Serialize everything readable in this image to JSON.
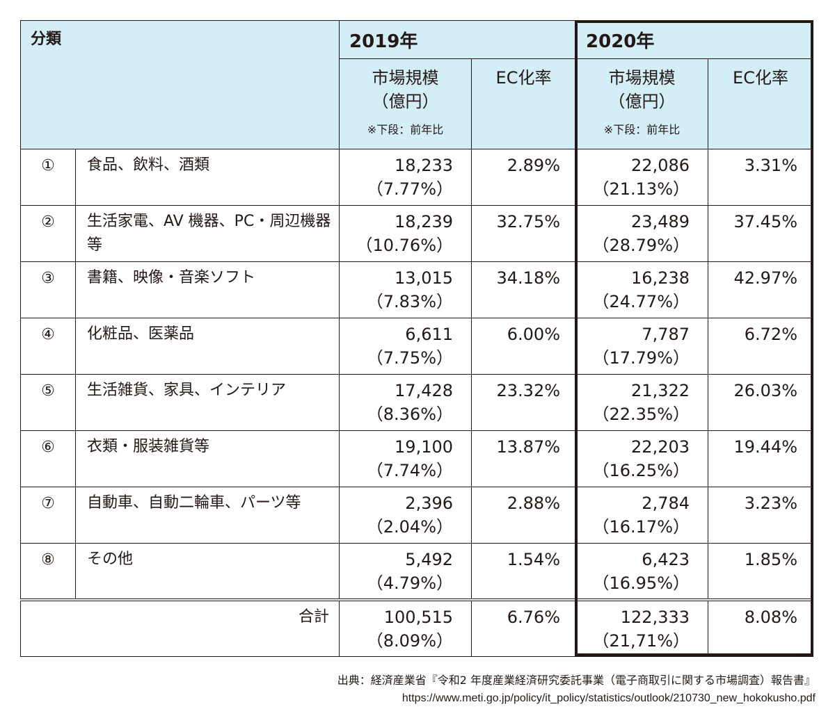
{
  "header": {
    "category_label": "分類",
    "year_2019": "2019年",
    "year_2020": "2020年",
    "market_size_line1": "市場規模",
    "market_size_line2": "（億円）",
    "market_size_note": "※下段：前年比",
    "ec_rate_label": "EC化率"
  },
  "rows": [
    {
      "num": "①",
      "category": "食品、飲料、酒類",
      "m2019": "18,233",
      "g2019": "（7.77%）",
      "ec2019": "2.89%",
      "m2020": "22,086",
      "g2020": "（21.13%）",
      "ec2020": "3.31%"
    },
    {
      "num": "②",
      "category": "生活家電、AV 機器、PC・周辺機器等",
      "m2019": "18,239",
      "g2019": "（10.76%）",
      "ec2019": "32.75%",
      "m2020": "23,489",
      "g2020": "（28.79%）",
      "ec2020": "37.45%"
    },
    {
      "num": "③",
      "category": "書籍、映像・音楽ソフト",
      "m2019": "13,015",
      "g2019": "（7.83%）",
      "ec2019": "34.18%",
      "m2020": "16,238",
      "g2020": "（24.77%）",
      "ec2020": "42.97%"
    },
    {
      "num": "④",
      "category": "化粧品、医薬品",
      "m2019": "6,611",
      "g2019": "（7.75%）",
      "ec2019": "6.00%",
      "m2020": "7,787",
      "g2020": "（17.79%）",
      "ec2020": "6.72%"
    },
    {
      "num": "⑤",
      "category": "生活雑貨、家具、インテリア",
      "m2019": "17,428",
      "g2019": "（8.36%）",
      "ec2019": "23.32%",
      "m2020": "21,322",
      "g2020": "（22.35%）",
      "ec2020": "26.03%"
    },
    {
      "num": "⑥",
      "category": "衣類・服装雑貨等",
      "m2019": "19,100",
      "g2019": "（7.74%）",
      "ec2019": "13.87%",
      "m2020": "22,203",
      "g2020": "（16.25%）",
      "ec2020": "19.44%"
    },
    {
      "num": "⑦",
      "category": "自動車、自動二輪車、パーツ等",
      "m2019": "2,396",
      "g2019": "（2.04%）",
      "ec2019": "2.88%",
      "m2020": "2,784",
      "g2020": "（16.17%）",
      "ec2020": "3.23%"
    },
    {
      "num": "⑧",
      "category": "その他",
      "m2019": "5,492",
      "g2019": "（4.79%）",
      "ec2019": "1.54%",
      "m2020": "6,423",
      "g2020": "（16.95%）",
      "ec2020": "1.85%"
    }
  ],
  "total": {
    "label": "合計",
    "m2019": "100,515",
    "g2019": "（8.09%）",
    "ec2019": "6.76%",
    "m2020": "122,333",
    "g2020": "（21,71%）",
    "ec2020": "8.08%"
  },
  "source": {
    "line1": "出典：経済産業省『令和2 年度産業経済研究委託事業（電子商取引に関する市場調査）報告書』",
    "line2": "https://www.meti.go.jp/policy/it_policy/statistics/outlook/210730_new_hokokusho.pdf"
  },
  "colors": {
    "header_bg": "#d4eef8",
    "border": "#231815",
    "text": "#231815"
  }
}
